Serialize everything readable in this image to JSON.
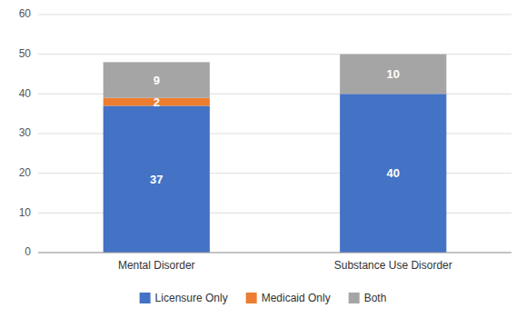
{
  "chart_data": {
    "type": "bar",
    "stacked": true,
    "categories": [
      "Mental Disorder",
      "Substance Use Disorder"
    ],
    "series": [
      {
        "name": "Licensure Only",
        "color": "#4472C4",
        "values": [
          37,
          40
        ]
      },
      {
        "name": "Medicaid Only",
        "color": "#ED7D31",
        "values": [
          2,
          0
        ]
      },
      {
        "name": "Both",
        "color": "#A5A5A5",
        "values": [
          9,
          10
        ]
      }
    ],
    "ylim": [
      0,
      60
    ],
    "yticks": [
      0,
      10,
      20,
      30,
      40,
      50,
      60
    ],
    "grid": true,
    "legend": "bottom",
    "data_labels": true
  }
}
